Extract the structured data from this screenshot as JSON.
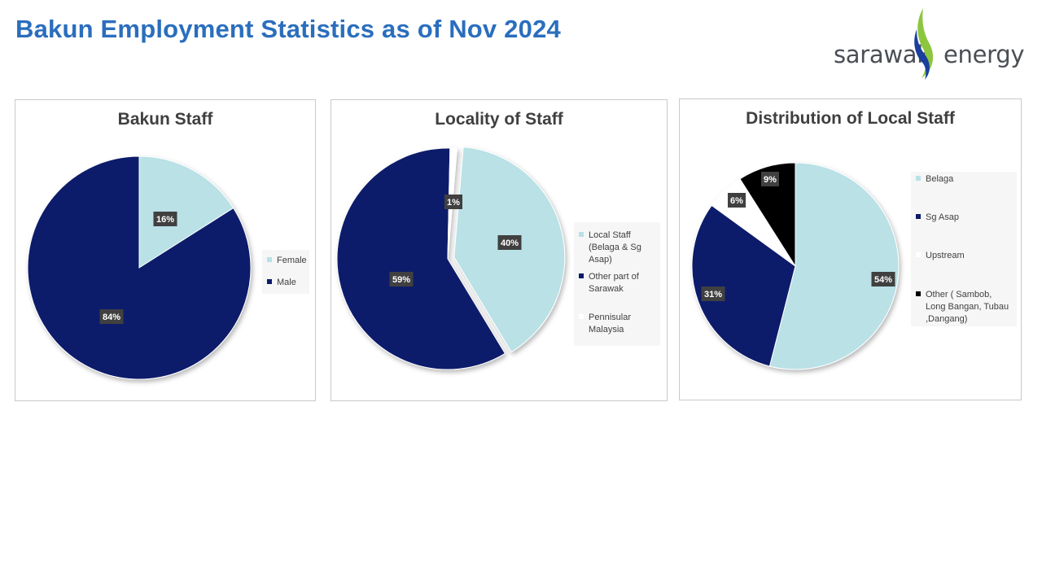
{
  "header": {
    "title": "Bakun Employment Statistics as of Nov 2024"
  },
  "logo": {
    "left_text": "sarawak",
    "right_text": "energy",
    "colors": {
      "blue": "#1a3f9c",
      "green": "#8cc63f",
      "text": "#4a4f55"
    }
  },
  "colors": {
    "light": "#b9e1e6",
    "dark": "#0b1a6b",
    "white": "#ffffff",
    "black": "#000000",
    "label_box": "#404040"
  },
  "chart_data": [
    {
      "type": "pie",
      "title": "Bakun Staff",
      "labels": [
        "Female",
        "Male"
      ],
      "values": [
        16,
        84
      ],
      "display_labels": [
        "16%",
        "84%"
      ],
      "colors": [
        "#b9e1e6",
        "#0b1a6b"
      ],
      "legend": "right"
    },
    {
      "type": "pie",
      "title": "Locality of Staff",
      "labels": [
        "Local Staff (Belaga & Sg Asap)",
        "Other part of Sarawak",
        "Pennisular Malaysia"
      ],
      "values": [
        40,
        59,
        1
      ],
      "display_labels": [
        "40%",
        "59%",
        "1%"
      ],
      "colors": [
        "#b9e1e6",
        "#0b1a6b",
        "#ffffff"
      ],
      "legend": "right"
    },
    {
      "type": "pie",
      "title": "Distribution of Local Staff",
      "labels": [
        "Belaga",
        "Sg Asap",
        "Upstream",
        "Other ( Sambob, Long Bangan, Tubau ,Dangang)"
      ],
      "values": [
        54,
        31,
        6,
        9
      ],
      "display_labels": [
        "54%",
        "31%",
        "6%",
        "9%"
      ],
      "colors": [
        "#b9e1e6",
        "#0b1a6b",
        "#ffffff",
        "#000000"
      ],
      "legend": "right"
    }
  ]
}
